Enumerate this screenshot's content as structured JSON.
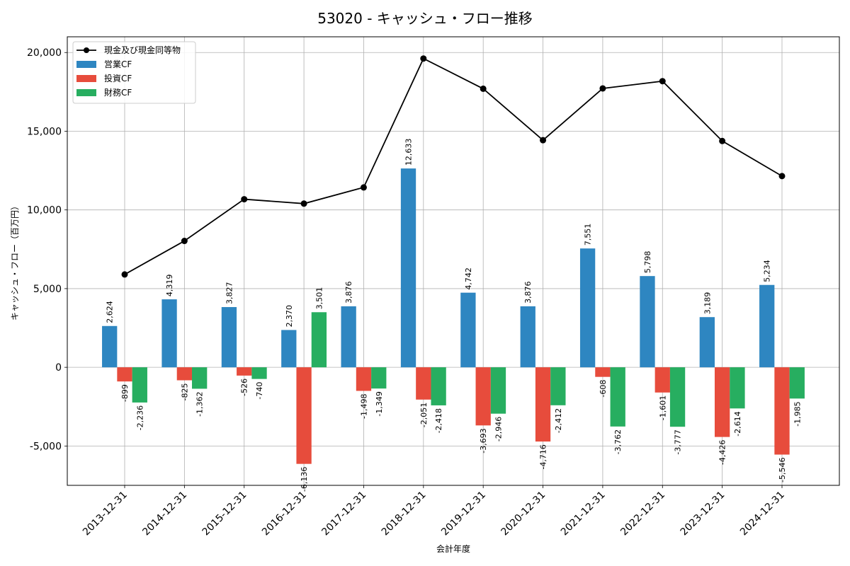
{
  "chart_data": {
    "type": "bar",
    "title": "53020 - キャッシュ・フロー推移",
    "xlabel": "会計年度",
    "ylabel": "キャッシュ・フロー（百万円）",
    "ylim": [
      -7500,
      21000
    ],
    "yticks": [
      -5000,
      0,
      5000,
      10000,
      15000,
      20000
    ],
    "ytick_labels": [
      "-5,000",
      "0",
      "5,000",
      "10,000",
      "15,000",
      "20,000"
    ],
    "grid": true,
    "legend_position": "top-left",
    "categories": [
      "2013-12-31",
      "2014-12-31",
      "2015-12-31",
      "2016-12-31",
      "2017-12-31",
      "2018-12-31",
      "2019-12-31",
      "2020-12-31",
      "2021-12-31",
      "2022-12-31",
      "2023-12-31",
      "2024-12-31"
    ],
    "series": [
      {
        "name": "営業CF",
        "kind": "bar",
        "color": "#2e86c1",
        "values": [
          2624,
          4319,
          3827,
          2370,
          3876,
          12633,
          4742,
          3876,
          7551,
          5798,
          3189,
          5234
        ],
        "labels": [
          "2,624",
          "4,319",
          "3,827",
          "2,370",
          "3,876",
          "12,633",
          "4,742",
          "3,876",
          "7,551",
          "5,798",
          "3,189",
          "5,234"
        ]
      },
      {
        "name": "投資CF",
        "kind": "bar",
        "color": "#e74c3c",
        "values": [
          -899,
          -825,
          -526,
          -6136,
          -1498,
          -2051,
          -3693,
          -4716,
          -608,
          -1601,
          -4426,
          -5546
        ],
        "labels": [
          "-899",
          "-825",
          "-526",
          "-6,136",
          "-1,498",
          "-2,051",
          "-3,693",
          "-4,716",
          "-608",
          "-1,601",
          "-4,426",
          "-5,546"
        ]
      },
      {
        "name": "財務CF",
        "kind": "bar",
        "color": "#27ae60",
        "values": [
          -2236,
          -1362,
          -740,
          3501,
          -1349,
          -2418,
          -2946,
          -2412,
          -3762,
          -3777,
          -2614,
          -1985
        ],
        "labels": [
          "-2,236",
          "-1,362",
          "-740",
          "3,501",
          "-1,349",
          "-2,418",
          "-2,946",
          "-2,412",
          "-3,762",
          "-3,777",
          "-2,614",
          "-1,985"
        ]
      },
      {
        "name": "現金及び現金同等物",
        "kind": "line",
        "color": "#000000",
        "values": [
          5900,
          8030,
          10680,
          10400,
          11430,
          19620,
          17700,
          14430,
          17720,
          18180,
          14380,
          12150
        ]
      }
    ]
  }
}
